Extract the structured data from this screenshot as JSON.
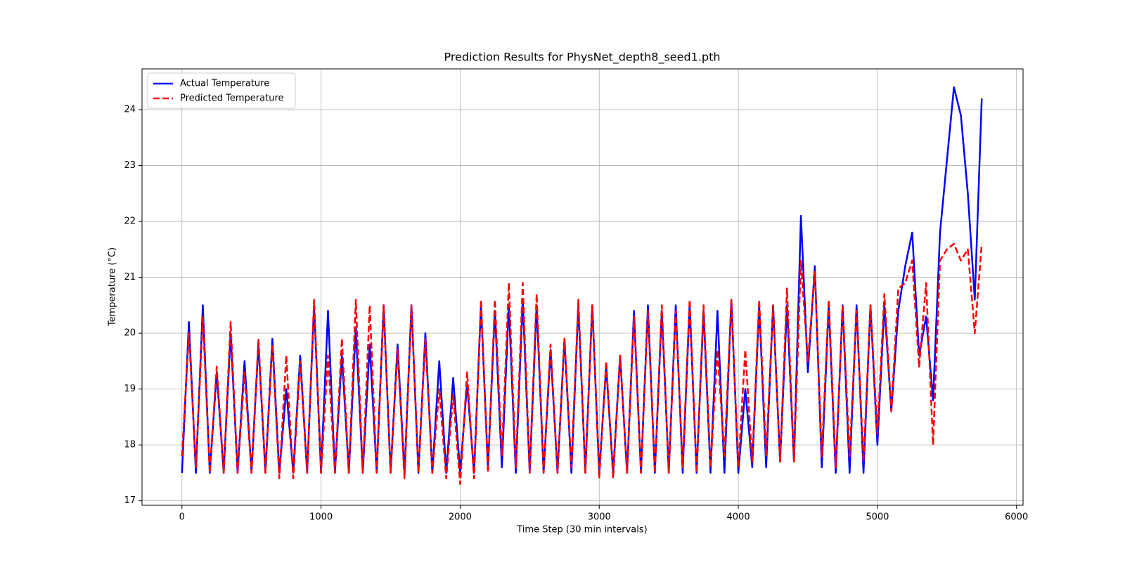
{
  "chart_data": {
    "type": "line",
    "title": "Prediction Results for PhysNet_depth8_seed1.pth",
    "xlabel": "Time Step (30 min intervals)",
    "ylabel": "Temperature (°C)",
    "x": [
      0,
      50,
      100,
      150,
      200,
      250,
      300,
      350,
      400,
      450,
      500,
      550,
      600,
      650,
      700,
      750,
      800,
      850,
      900,
      950,
      1000,
      1050,
      1100,
      1150,
      1200,
      1250,
      1300,
      1350,
      1400,
      1450,
      1500,
      1550,
      1600,
      1650,
      1700,
      1750,
      1800,
      1850,
      1900,
      1950,
      2000,
      2050,
      2100,
      2150,
      2200,
      2250,
      2300,
      2350,
      2400,
      2450,
      2500,
      2550,
      2600,
      2650,
      2700,
      2750,
      2800,
      2850,
      2900,
      2950,
      3000,
      3050,
      3100,
      3150,
      3200,
      3250,
      3300,
      3350,
      3400,
      3450,
      3500,
      3550,
      3600,
      3650,
      3700,
      3750,
      3800,
      3850,
      3900,
      3950,
      4000,
      4050,
      4100,
      4150,
      4200,
      4250,
      4300,
      4350,
      4400,
      4450,
      4500,
      4550,
      4600,
      4650,
      4700,
      4750,
      4800,
      4850,
      4900,
      4950,
      5000,
      5050,
      5100,
      5150,
      5200,
      5250,
      5300,
      5350,
      5400,
      5450,
      5500,
      5550,
      5600,
      5650,
      5700,
      5750
    ],
    "series": [
      {
        "name": "Actual Temperature",
        "color": "#0000ff",
        "dash": "solid",
        "values": [
          17.5,
          20.2,
          17.5,
          20.5,
          17.5,
          19.3,
          17.5,
          20.0,
          17.5,
          19.5,
          17.5,
          19.8,
          17.5,
          19.9,
          17.5,
          19.0,
          17.5,
          19.6,
          17.5,
          20.5,
          17.5,
          20.4,
          17.5,
          19.6,
          17.5,
          20.1,
          17.5,
          19.8,
          17.5,
          20.5,
          17.5,
          19.8,
          17.5,
          20.5,
          17.5,
          20.0,
          17.5,
          19.5,
          17.5,
          19.2,
          17.5,
          19.1,
          17.5,
          20.5,
          17.6,
          20.4,
          17.6,
          20.5,
          17.5,
          20.6,
          17.5,
          20.5,
          17.5,
          19.7,
          17.5,
          19.9,
          17.5,
          20.5,
          17.5,
          20.5,
          17.5,
          19.4,
          17.5,
          19.6,
          17.5,
          20.4,
          17.5,
          20.5,
          17.5,
          20.4,
          17.5,
          20.5,
          17.5,
          20.5,
          17.5,
          20.4,
          17.5,
          20.4,
          17.5,
          20.6,
          17.5,
          19.0,
          17.6,
          20.5,
          17.6,
          20.5,
          17.7,
          20.5,
          17.7,
          22.1,
          19.3,
          21.2,
          17.6,
          20.5,
          17.5,
          20.5,
          17.5,
          20.5,
          17.5,
          20.5,
          18.0,
          20.5,
          18.6,
          20.4,
          21.2,
          21.8,
          19.6,
          20.3,
          18.8,
          21.8,
          23.1,
          24.4,
          23.9,
          22.5,
          20.6,
          24.2
        ]
      },
      {
        "name": "Predicted Temperature",
        "color": "#ff0000",
        "dash": "dashed",
        "values": [
          17.8,
          20.0,
          17.6,
          20.3,
          17.5,
          19.4,
          17.5,
          20.2,
          17.5,
          19.3,
          17.5,
          19.9,
          17.5,
          19.8,
          17.4,
          19.6,
          17.4,
          19.5,
          17.5,
          20.6,
          17.5,
          19.6,
          17.5,
          19.9,
          17.5,
          20.6,
          17.5,
          20.5,
          17.5,
          20.5,
          17.5,
          19.7,
          17.4,
          20.5,
          17.5,
          19.9,
          17.5,
          19.0,
          17.4,
          18.9,
          17.3,
          19.3,
          17.4,
          20.6,
          17.5,
          20.6,
          17.8,
          20.9,
          17.6,
          20.9,
          17.5,
          20.7,
          17.5,
          19.8,
          17.5,
          19.9,
          17.6,
          20.6,
          17.5,
          20.5,
          17.4,
          19.5,
          17.4,
          19.6,
          17.5,
          20.3,
          17.5,
          20.4,
          17.5,
          20.5,
          17.5,
          20.4,
          17.6,
          20.6,
          17.5,
          20.5,
          17.6,
          19.7,
          17.8,
          20.6,
          17.6,
          19.7,
          17.7,
          20.6,
          17.8,
          20.5,
          17.7,
          20.8,
          17.7,
          21.3,
          19.5,
          21.1,
          17.8,
          20.6,
          17.6,
          20.5,
          17.8,
          20.4,
          17.7,
          20.5,
          18.2,
          20.7,
          18.6,
          20.8,
          20.9,
          21.3,
          19.4,
          20.9,
          18.0,
          21.3,
          21.5,
          21.6,
          21.3,
          21.5,
          20.0,
          21.6
        ]
      }
    ],
    "xlim": [
      -287,
      6047
    ],
    "xticks": [
      0,
      1000,
      2000,
      3000,
      4000,
      5000,
      6000
    ],
    "ylim": [
      16.92,
      24.73
    ],
    "yticks": [
      17,
      18,
      19,
      20,
      21,
      22,
      23,
      24
    ],
    "grid": true,
    "legend": "upper left"
  }
}
